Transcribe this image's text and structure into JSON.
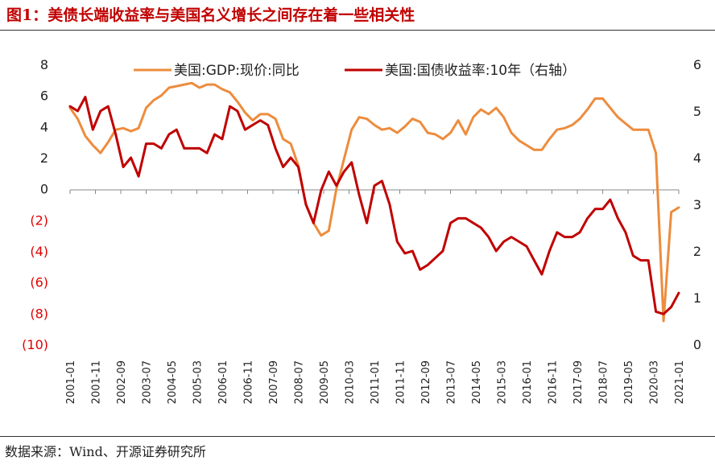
{
  "page": {
    "title": "图1：美债长端收益率与美国名义增长之间存在着一些相关性",
    "source": "数据来源：Wind、开源证券研究所"
  },
  "chart_data": {
    "type": "line",
    "title": "",
    "legend": [
      {
        "name": "美国:GDP:现价:同比",
        "color": "#ED8C3D",
        "axis": "left"
      },
      {
        "name": "美国:国债收益率:10年（右轴）",
        "color": "#C00000",
        "axis": "right"
      }
    ],
    "left_axis": {
      "range": [
        -10,
        8
      ],
      "ticks": [
        "8",
        "6",
        "4",
        "2",
        "0",
        "(2)",
        "(4)",
        "(6)",
        "(8)",
        "(10)"
      ],
      "tick_values": [
        8,
        6,
        4,
        2,
        0,
        -2,
        -4,
        -6,
        -8,
        -10
      ],
      "negative_color": "#e00000"
    },
    "right_axis": {
      "range": [
        0,
        6
      ],
      "ticks": [
        "6",
        "5",
        "4",
        "3",
        "2",
        "1",
        "0"
      ],
      "tick_values": [
        6,
        5,
        4,
        3,
        2,
        1,
        0
      ]
    },
    "x_axis": {
      "start": 2001.0,
      "end": 2021.0,
      "tick_labels": [
        "2001-01",
        "2001-11",
        "2002-09",
        "2003-07",
        "2004-05",
        "2005-03",
        "2006-01",
        "2006-11",
        "2007-09",
        "2008-07",
        "2009-05",
        "2010-03",
        "2011-01",
        "2011-11",
        "2012-09",
        "2013-07",
        "2014-05",
        "2015-03",
        "2016-01",
        "2016-11",
        "2017-09",
        "2018-07",
        "2019-05",
        "2020-03",
        "2021-01"
      ]
    },
    "series": [
      {
        "name": "美国:GDP:现价:同比",
        "axis": "left",
        "x": [
          2001.0,
          2001.25,
          2001.5,
          2001.75,
          2002.0,
          2002.25,
          2002.5,
          2002.75,
          2003.0,
          2003.25,
          2003.5,
          2003.75,
          2004.0,
          2004.25,
          2004.5,
          2004.75,
          2005.0,
          2005.25,
          2005.5,
          2005.75,
          2006.0,
          2006.25,
          2006.5,
          2006.75,
          2007.0,
          2007.25,
          2007.5,
          2007.75,
          2008.0,
          2008.25,
          2008.5,
          2008.75,
          2009.0,
          2009.25,
          2009.5,
          2009.75,
          2010.0,
          2010.25,
          2010.5,
          2010.75,
          2011.0,
          2011.25,
          2011.5,
          2011.75,
          2012.0,
          2012.25,
          2012.5,
          2012.75,
          2013.0,
          2013.25,
          2013.5,
          2013.75,
          2014.0,
          2014.25,
          2014.5,
          2014.75,
          2015.0,
          2015.25,
          2015.5,
          2015.75,
          2016.0,
          2016.25,
          2016.5,
          2016.75,
          2017.0,
          2017.25,
          2017.5,
          2017.75,
          2018.0,
          2018.25,
          2018.5,
          2018.75,
          2019.0,
          2019.25,
          2019.5,
          2019.75,
          2020.0,
          2020.25,
          2020.5,
          2020.75,
          2021.0
        ],
        "values": [
          5.2,
          4.5,
          3.4,
          2.8,
          2.3,
          3.0,
          3.8,
          3.9,
          3.7,
          3.9,
          5.2,
          5.7,
          6.0,
          6.5,
          6.6,
          6.7,
          6.8,
          6.5,
          6.7,
          6.7,
          6.4,
          6.2,
          5.6,
          4.9,
          4.4,
          4.8,
          4.8,
          4.5,
          3.2,
          2.9,
          1.5,
          -1.0,
          -2.2,
          -3.0,
          -2.7,
          0.0,
          1.9,
          3.8,
          4.6,
          4.5,
          4.1,
          3.8,
          3.9,
          3.6,
          4.0,
          4.5,
          4.3,
          3.6,
          3.5,
          3.2,
          3.6,
          4.4,
          3.5,
          4.6,
          5.1,
          4.8,
          5.2,
          4.6,
          3.6,
          3.1,
          2.8,
          2.5,
          2.5,
          3.2,
          3.8,
          3.9,
          4.1,
          4.5,
          5.1,
          5.8,
          5.8,
          5.2,
          4.6,
          4.2,
          3.8,
          3.8,
          3.8,
          2.3,
          -8.5,
          -1.5,
          -1.2
        ]
      },
      {
        "name": "美国:国债收益率:10年（右轴）",
        "axis": "right",
        "x": [
          2001.0,
          2001.25,
          2001.5,
          2001.75,
          2002.0,
          2002.25,
          2002.5,
          2002.75,
          2003.0,
          2003.25,
          2003.5,
          2003.75,
          2004.0,
          2004.25,
          2004.5,
          2004.75,
          2005.0,
          2005.25,
          2005.5,
          2005.75,
          2006.0,
          2006.25,
          2006.5,
          2006.75,
          2007.0,
          2007.25,
          2007.5,
          2007.75,
          2008.0,
          2008.25,
          2008.5,
          2008.75,
          2009.0,
          2009.25,
          2009.5,
          2009.75,
          2010.0,
          2010.25,
          2010.5,
          2010.75,
          2011.0,
          2011.25,
          2011.5,
          2011.75,
          2012.0,
          2012.25,
          2012.5,
          2012.75,
          2013.0,
          2013.25,
          2013.5,
          2013.75,
          2014.0,
          2014.25,
          2014.5,
          2014.75,
          2015.0,
          2015.25,
          2015.5,
          2015.75,
          2016.0,
          2016.25,
          2016.5,
          2016.75,
          2017.0,
          2017.25,
          2017.5,
          2017.75,
          2018.0,
          2018.25,
          2018.5,
          2018.75,
          2019.0,
          2019.25,
          2019.5,
          2019.75,
          2020.0,
          2020.25,
          2020.5,
          2020.75,
          2021.0
        ],
        "values": [
          5.1,
          5.0,
          5.3,
          4.6,
          5.0,
          5.1,
          4.5,
          3.8,
          4.0,
          3.6,
          4.3,
          4.3,
          4.2,
          4.5,
          4.6,
          4.2,
          4.2,
          4.2,
          4.1,
          4.5,
          4.4,
          5.1,
          5.0,
          4.6,
          4.7,
          4.8,
          4.7,
          4.2,
          3.8,
          4.0,
          3.8,
          3.0,
          2.6,
          3.3,
          3.7,
          3.4,
          3.7,
          3.9,
          3.2,
          2.6,
          3.4,
          3.5,
          3.0,
          2.2,
          1.95,
          2.0,
          1.6,
          1.7,
          1.85,
          2.0,
          2.6,
          2.7,
          2.7,
          2.6,
          2.5,
          2.3,
          2.0,
          2.2,
          2.3,
          2.2,
          2.1,
          1.8,
          1.5,
          2.0,
          2.4,
          2.3,
          2.3,
          2.4,
          2.7,
          2.9,
          2.9,
          3.1,
          2.7,
          2.4,
          1.9,
          1.8,
          1.8,
          0.7,
          0.65,
          0.8,
          1.1
        ]
      }
    ]
  }
}
